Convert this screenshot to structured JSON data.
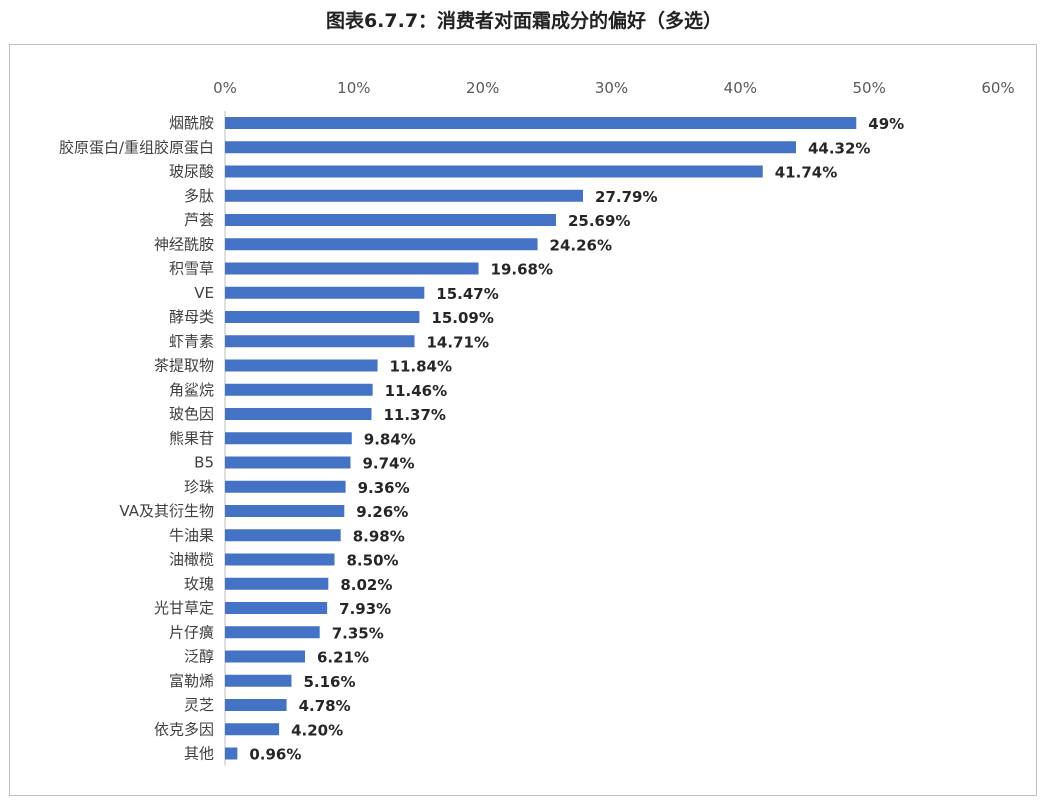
{
  "chart_data": {
    "type": "bar",
    "orientation": "horizontal",
    "title": "图表6.7.7：消费者对面霜成分的偏好（多选）",
    "categories": [
      "烟酰胺",
      "胶原蛋白/重组胶原蛋白",
      "玻尿酸",
      "多肽",
      "芦荟",
      "神经酰胺",
      "积雪草",
      "VE",
      "酵母类",
      "虾青素",
      "茶提取物",
      "角鲨烷",
      "玻色因",
      "熊果苷",
      "B5",
      "珍珠",
      "VA及其衍生物",
      "牛油果",
      "油橄榄",
      "玫瑰",
      "光甘草定",
      "片仔癀",
      "泛醇",
      "富勒烯",
      "灵芝",
      "依克多因",
      "其他"
    ],
    "values": [
      49,
      44.32,
      41.74,
      27.79,
      25.69,
      24.26,
      19.68,
      15.47,
      15.09,
      14.71,
      11.84,
      11.46,
      11.37,
      9.84,
      9.74,
      9.36,
      9.26,
      8.98,
      8.5,
      8.02,
      7.93,
      7.35,
      6.21,
      5.16,
      4.78,
      4.2,
      0.96
    ],
    "data_labels": [
      "49%",
      "44.32%",
      "41.74%",
      "27.79%",
      "25.69%",
      "24.26%",
      "19.68%",
      "15.47%",
      "15.09%",
      "14.71%",
      "11.84%",
      "11.46%",
      "11.37%",
      "9.84%",
      "9.74%",
      "9.36%",
      "9.26%",
      "8.98%",
      "8.50%",
      "8.02%",
      "7.93%",
      "7.35%",
      "6.21%",
      "5.16%",
      "4.78%",
      "4.20%",
      "0.96%"
    ],
    "x_ticks": [
      "0%",
      "10%",
      "20%",
      "30%",
      "40%",
      "50%",
      "60%"
    ],
    "xlim": [
      0,
      60
    ],
    "x_axis_position": "top",
    "grid": false,
    "bar_color": "#4472c4"
  }
}
